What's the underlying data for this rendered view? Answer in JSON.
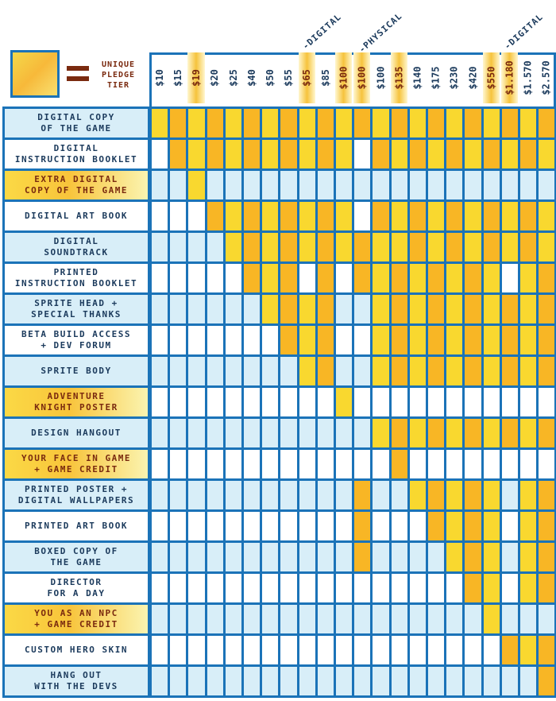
{
  "legend": {
    "lines": [
      "UNIQUE",
      "PLEDGE",
      "TIER"
    ]
  },
  "sections": [
    "-DIGITAL",
    "-PHYSICAL",
    "-DIGITAL"
  ],
  "colors": {
    "border": "#1b73b8",
    "shade": "#d8eef8",
    "yellow": "#f9d82f",
    "orange": "#f8b625",
    "white": "#ffffff",
    "unique_text": "#7a2a0f",
    "text": "#1b3a5c"
  },
  "tiers": [
    {
      "label": "$10",
      "unique": false
    },
    {
      "label": "$15",
      "unique": false
    },
    {
      "label": "$19",
      "unique": true
    },
    {
      "label": "$20",
      "unique": false
    },
    {
      "label": "$25",
      "unique": false
    },
    {
      "label": "$40",
      "unique": false
    },
    {
      "label": "$50",
      "unique": false
    },
    {
      "label": "$55",
      "unique": false
    },
    {
      "label": "$65",
      "unique": true
    },
    {
      "label": "$85",
      "unique": false
    },
    {
      "label": "$100",
      "unique": true
    },
    {
      "label": "$100",
      "unique": true
    },
    {
      "label": "$100",
      "unique": false
    },
    {
      "label": "$135",
      "unique": true
    },
    {
      "label": "$140",
      "unique": false
    },
    {
      "label": "$175",
      "unique": false
    },
    {
      "label": "$230",
      "unique": false
    },
    {
      "label": "$420",
      "unique": false
    },
    {
      "label": "$550",
      "unique": true
    },
    {
      "label": "$1.180",
      "unique": true
    },
    {
      "label": "$1.570",
      "unique": false
    },
    {
      "label": "$2.570",
      "unique": false
    }
  ],
  "rows": [
    {
      "label": [
        "DIGITAL COPY",
        "OF THE GAME"
      ],
      "unique": false,
      "cells": "YOYOYOYOYOYOYOYOYOYOYO"
    },
    {
      "label": [
        "DIGITAL",
        "INSTRUCTION BOOKLET"
      ],
      "unique": false,
      "cells": "_OYOYOYOYOY_OYOYOYOYOY"
    },
    {
      "label": [
        "EXTRA DIGITAL",
        "COPY OF THE GAME"
      ],
      "unique": true,
      "cells": "__Y___________________"
    },
    {
      "label": [
        "DIGITAL ART BOOK"
      ],
      "unique": false,
      "cells": "___OYOYOYOY_OYOYOYOYOY"
    },
    {
      "label": [
        "DIGITAL",
        "SOUNDTRACK"
      ],
      "unique": false,
      "cells": "____YOYOYOYOYYOYOYOYOY"
    },
    {
      "label": [
        "PRINTED",
        "INSTRUCTION BOOKLET"
      ],
      "unique": false,
      "cells": "_____OYO_O_OYOYOYOY_YO"
    },
    {
      "label": [
        "SPRITE HEAD +",
        "SPECIAL THANKS"
      ],
      "unique": false,
      "cells": "______YOYO__YOYOYOYOYO"
    },
    {
      "label": [
        "BETA BUILD ACCESS",
        "+ DEV FORUM"
      ],
      "unique": false,
      "cells": "_______OYO__YOYOYOYOYO"
    },
    {
      "label": [
        "SPRITE BODY"
      ],
      "unique": false,
      "cells": "________YO__YOYOYOYOYO"
    },
    {
      "label": [
        "ADVENTURE",
        "KNIGHT POSTER"
      ],
      "unique": true,
      "cells": "__________Y___________"
    },
    {
      "label": [
        "DESIGN HANGOUT"
      ],
      "unique": false,
      "cells": "____________YOYOYOYOYO"
    },
    {
      "label": [
        "YOUR FACE IN GAME",
        "+ GAME CREDIT"
      ],
      "unique": true,
      "cells": "_____________O________"
    },
    {
      "label": [
        "PRINTED POSTER +",
        "DIGITAL WALLPAPERS"
      ],
      "unique": false,
      "cells": "___________O__YOYOY_YO"
    },
    {
      "label": [
        "PRINTED ART BOOK"
      ],
      "unique": false,
      "cells": "___________O___OYOY_YO"
    },
    {
      "label": [
        "BOXED COPY OF",
        "THE GAME"
      ],
      "unique": false,
      "cells": "___________O____YOY_YO"
    },
    {
      "label": [
        "DIRECTOR",
        "FOR A DAY"
      ],
      "unique": false,
      "cells": "_________________OY_YO"
    },
    {
      "label": [
        "YOU AS AN NPC",
        "+ GAME CREDIT"
      ],
      "unique": true,
      "cells": "__________________Y___"
    },
    {
      "label": [
        "CUSTOM HERO SKIN"
      ],
      "unique": false,
      "cells": "___________________OYO"
    },
    {
      "label": [
        "HANG OUT",
        "WITH THE DEVS"
      ],
      "unique": false,
      "cells": "_____________________O"
    }
  ]
}
